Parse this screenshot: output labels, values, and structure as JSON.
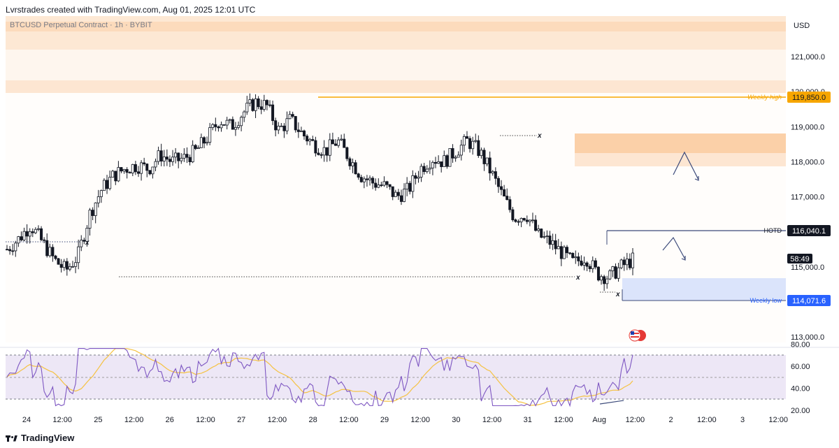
{
  "header": {
    "credit": "Lvrstrades created with TradingView.com, Aug 01, 2025 12:01 UTC",
    "symbol_line": "BTCUSD Perpetual Contract · 1h · BYBIT",
    "currency": "USD"
  },
  "footer": {
    "brand": "TradingView"
  },
  "colors": {
    "up": "#131722",
    "down": "#131722",
    "accent_orange": "#f7a600",
    "zone_orange": "#fbd0a8",
    "zone_blue": "#dbe4fb",
    "rsi_fill": "#ede7f6",
    "rsi_line": "#7e57c2",
    "rsi_ma": "#f5c242",
    "label_bg": "#131722"
  },
  "chart_data": {
    "type": "candlestick",
    "symbol": "BTCUSD Perpetual Contract",
    "interval": "1h",
    "exchange": "BYBIT",
    "ylim": [
      112800,
      122500
    ],
    "y_ticks": [
      113000,
      114000,
      115000,
      116000,
      117000,
      118000,
      119000,
      120000,
      121000
    ],
    "y_tick_labels": [
      "113,000.0",
      "114,000.0",
      "115,000.0",
      "116,000.0",
      "117,000.0",
      "118,000.0",
      "119,000.0",
      "120,000.0",
      "121,000.0"
    ],
    "x_tick_labels": [
      "24",
      "12:00",
      "25",
      "12:00",
      "26",
      "12:00",
      "27",
      "12:00",
      "28",
      "12:00",
      "29",
      "12:00",
      "30",
      "12:00",
      "31",
      "12:00",
      "Aug",
      "12:00",
      "2",
      "12:00",
      "3",
      "12:00"
    ],
    "close_path": [
      115500,
      115800,
      116200,
      115700,
      115200,
      114900,
      115300,
      116500,
      117200,
      117600,
      117800,
      117900,
      117800,
      118200,
      118000,
      118100,
      118300,
      118700,
      119200,
      119000,
      119400,
      119700,
      119600,
      118900,
      119200,
      118800,
      118500,
      118300,
      118600,
      118100,
      117600,
      117400,
      117300,
      117000,
      117200,
      117800,
      118100,
      118000,
      118300,
      118600,
      118300,
      117700,
      117000,
      116400,
      116500,
      115900,
      115700,
      115400,
      115100,
      115300,
      114800,
      114700,
      115000,
      115200
    ],
    "key_levels": [
      {
        "label": "Weekly high",
        "value": 119850.0,
        "value_label": "119,850.0"
      },
      {
        "label": "HOTD",
        "value": 116040.1,
        "value_label": "116,040.1"
      },
      {
        "label": "Weekly low",
        "value": 114071.6,
        "value_label": "114,071.6"
      }
    ],
    "countdown": "58:49",
    "rsi": {
      "ylim": [
        20,
        80
      ],
      "y_tick_labels": [
        "80.00",
        "60.00",
        "40.00",
        "20.00"
      ],
      "bands": [
        70,
        50,
        30
      ]
    }
  }
}
